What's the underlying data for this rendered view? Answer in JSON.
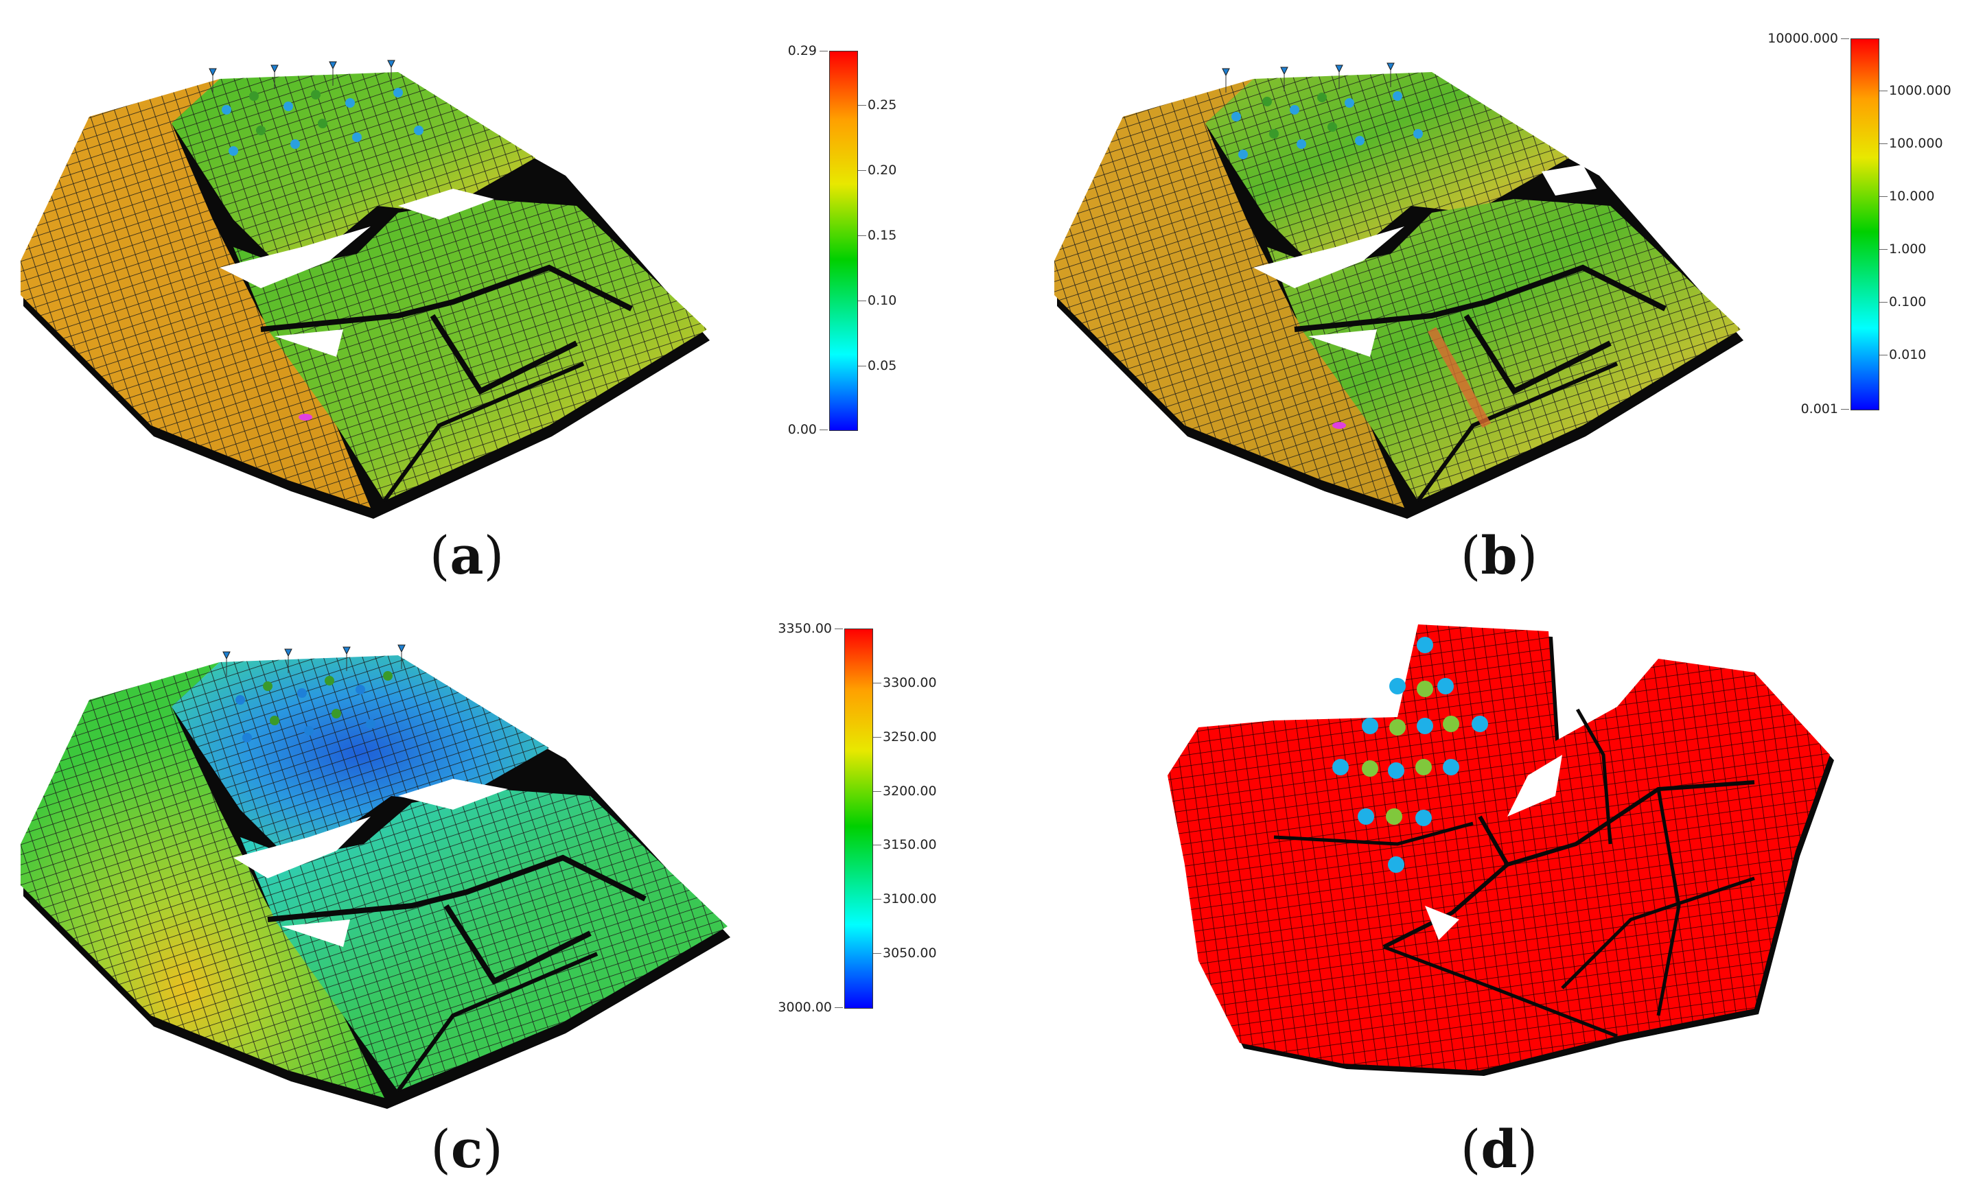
{
  "panels": [
    {
      "id": "a",
      "caption_open": "(",
      "caption_letter": "a",
      "caption_close": ")",
      "colorbar": {
        "min_label": "0.00",
        "max_label": "0.29",
        "ticks": [
          "0.25",
          "0.20",
          "0.15",
          "0.10",
          "0.05"
        ],
        "scale": "linear",
        "colors": [
          "#0000ff",
          "#00ffff",
          "#00d000",
          "#e8e800",
          "#ffa000",
          "#ff0000"
        ]
      },
      "surface": {
        "colors": [
          "#e0a020",
          "#5ab82a",
          "#c8c82a",
          "#e06020"
        ]
      }
    },
    {
      "id": "b",
      "caption_open": "(",
      "caption_letter": "b",
      "caption_close": ")",
      "colorbar": {
        "min_label": "0.001",
        "max_label": "10000.000",
        "ticks": [
          "1000.000",
          "100.000",
          "10.000",
          "1.000",
          "0.100",
          "0.010"
        ],
        "scale": "log",
        "colors": [
          "#0000ff",
          "#00ffff",
          "#00d000",
          "#e8e800",
          "#ffa000",
          "#ff0000"
        ]
      },
      "surface": {
        "colors": [
          "#d8a025",
          "#b8c030",
          "#5ab82a",
          "#d87030"
        ]
      }
    },
    {
      "id": "c",
      "caption_open": "(",
      "caption_letter": "c",
      "caption_close": ")",
      "colorbar": {
        "min_label": "3000.00",
        "max_label": "3350.00",
        "ticks": [
          "3300.00",
          "3250.00",
          "3200.00",
          "3150.00",
          "3100.00",
          "3050.00"
        ],
        "scale": "linear",
        "colors": [
          "#0000ff",
          "#00ffff",
          "#00d000",
          "#e8e800",
          "#ffa000",
          "#ff0000"
        ]
      },
      "surface": {
        "colors": [
          "#3cc83c",
          "#2aa0e0",
          "#1e70d8",
          "#d8c020"
        ]
      }
    },
    {
      "id": "d",
      "caption_open": "(",
      "caption_letter": "d",
      "caption_close": ")",
      "surface": {
        "colors": [
          "#ff0000"
        ]
      },
      "wells": {
        "injector_color": "#1eb0e8",
        "producer_color": "#80c83c"
      }
    }
  ]
}
